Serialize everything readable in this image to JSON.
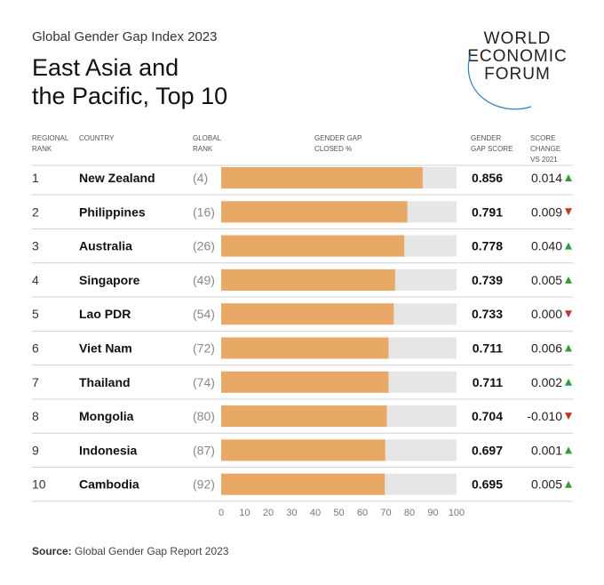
{
  "header": {
    "subtitle": "Global Gender Gap Index 2023",
    "title_line1": "East Asia and",
    "title_line2": "the Pacific, Top 10"
  },
  "logo": {
    "line1": "WORLD",
    "line2": "ECONOMIC",
    "line3": "FORUM"
  },
  "columns": {
    "regional_rank": [
      "REGIONAL",
      "RANK"
    ],
    "country": [
      "COUNTRY"
    ],
    "global_rank": [
      "GLOBAL",
      "RANK"
    ],
    "gap_closed": [
      "GENDER GAP",
      "CLOSED %"
    ],
    "score": [
      "GENDER",
      "GAP SCORE"
    ],
    "change": [
      "SCORE",
      "CHANGE",
      "VS 2021"
    ]
  },
  "chart_data": {
    "type": "bar",
    "orientation": "horizontal",
    "xlim": [
      0,
      100
    ],
    "x_ticks": [
      "0",
      "10",
      "20",
      "30",
      "40",
      "50",
      "60",
      "70",
      "80",
      "90",
      "100"
    ],
    "rows": [
      {
        "regional_rank": "1",
        "country": "New Zealand",
        "global_rank": "(4)",
        "value": 85.6,
        "score": "0.856",
        "change": "0.014",
        "direction": "up"
      },
      {
        "regional_rank": "2",
        "country": "Philippines",
        "global_rank": "(16)",
        "value": 79.1,
        "score": "0.791",
        "change": "0.009",
        "direction": "down"
      },
      {
        "regional_rank": "3",
        "country": "Australia",
        "global_rank": "(26)",
        "value": 77.8,
        "score": "0.778",
        "change": "0.040",
        "direction": "up"
      },
      {
        "regional_rank": "4",
        "country": "Singapore",
        "global_rank": "(49)",
        "value": 73.9,
        "score": "0.739",
        "change": "0.005",
        "direction": "up"
      },
      {
        "regional_rank": "5",
        "country": "Lao PDR",
        "global_rank": "(54)",
        "value": 73.3,
        "score": "0.733",
        "change": "0.000",
        "direction": "down"
      },
      {
        "regional_rank": "6",
        "country": "Viet Nam",
        "global_rank": "(72)",
        "value": 71.1,
        "score": "0.711",
        "change": "0.006",
        "direction": "up"
      },
      {
        "regional_rank": "7",
        "country": "Thailand",
        "global_rank": "(74)",
        "value": 71.1,
        "score": "0.711",
        "change": "0.002",
        "direction": "up"
      },
      {
        "regional_rank": "8",
        "country": "Mongolia",
        "global_rank": "(80)",
        "value": 70.4,
        "score": "0.704",
        "change": "-0.010",
        "direction": "down"
      },
      {
        "regional_rank": "9",
        "country": "Indonesia",
        "global_rank": "(87)",
        "value": 69.7,
        "score": "0.697",
        "change": "0.001",
        "direction": "up"
      },
      {
        "regional_rank": "10",
        "country": "Cambodia",
        "global_rank": "(92)",
        "value": 69.5,
        "score": "0.695",
        "change": "0.005",
        "direction": "up"
      }
    ]
  },
  "colors": {
    "bar_fill": "#E8A866",
    "bar_track": "#E6E6E6",
    "up": "#2E9E3F",
    "down": "#C0392B",
    "divider": "#D0D0D0"
  },
  "source": {
    "label": "Source:",
    "text": " Global Gender Gap Report 2023"
  }
}
